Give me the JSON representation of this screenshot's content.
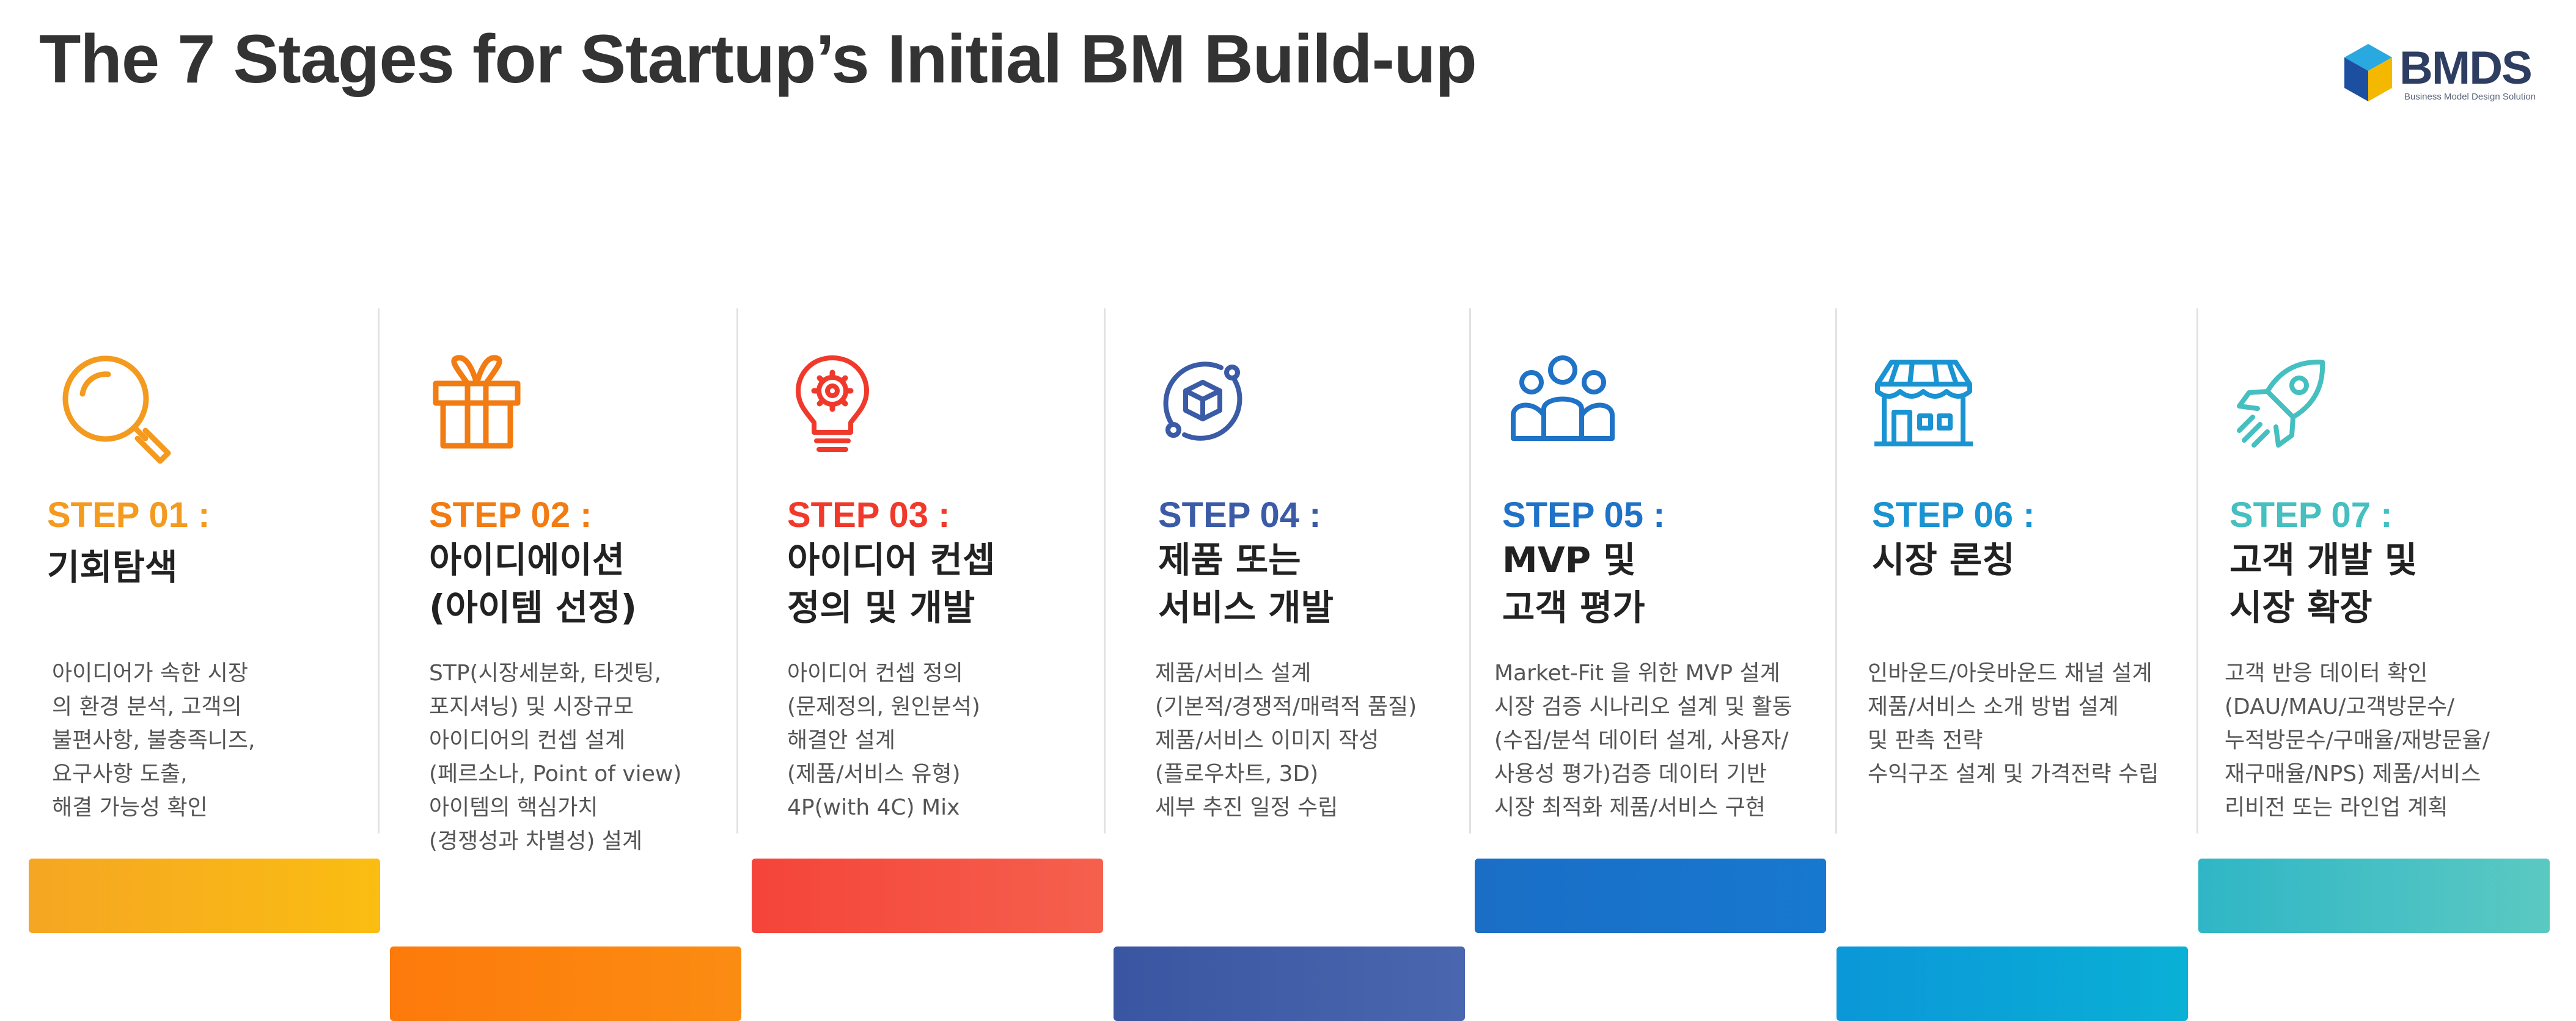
{
  "title": "The 7 Stages for Startup’s Initial BM Build-up",
  "logo": {
    "word": "BMDS",
    "sub": "Business Model Design Solution"
  },
  "colors": {
    "step01": "#f39a1f",
    "step02": "#f27b12",
    "step03": "#f0392b",
    "step04": "#3b5ba7",
    "step05": "#1f72c6",
    "step06": "#1993d1",
    "step07": "#45bfc0"
  },
  "steps": [
    {
      "label": "STEP 01 :",
      "icon": "magnifier-icon",
      "title": [
        "기회탐색"
      ],
      "desc": [
        "아이디어가 속한 시장",
        "의 환경 분석, 고객의",
        "불편사항, 불충족니즈,",
        "요구사항 도출,",
        "해결 가능성 확인"
      ]
    },
    {
      "label": "STEP 02 :",
      "icon": "gift-icon",
      "title": [
        "아이디에이션",
        "(아이템 선정)"
      ],
      "desc": [
        "STP(시장세분화, 타겟팅,",
        "포지셔닝) 및 시장규모",
        "아이디어의 컨셉 설계",
        "(페르소나, Point of view)",
        "아이템의 핵심가치",
        "(경쟁성과 차별성) 설계"
      ]
    },
    {
      "label": "STEP 03 :",
      "icon": "lightbulb-gear-icon",
      "title": [
        "아이디어 컨셉",
        "정의 및 개발"
      ],
      "desc": [
        "아이디어 컨셉 정의",
        "(문제정의, 원인분석)",
        "해결안 설계",
        "(제품/서비스 유형)",
        "4P(with 4C) Mix"
      ]
    },
    {
      "label": "STEP 04 :",
      "icon": "cube-cycle-icon",
      "title": [
        "제품 또는",
        "서비스 개발"
      ],
      "desc": [
        "제품/서비스 설계",
        "(기본적/경쟁적/매력적 품질)",
        "제품/서비스 이미지 작성",
        "(플로우차트, 3D)",
        "세부 추진 일정 수립"
      ]
    },
    {
      "label": "STEP 05 :",
      "icon": "people-icon",
      "title": [
        "MVP 및",
        "고객 평가"
      ],
      "desc": [
        "Market-Fit 을 위한 MVP 설계",
        "시장 검증 시나리오 설계 및 활동",
        "(수집/분석 데이터 설계, 사용자/",
        "사용성 평가)검증 데이터 기반",
        "시장 최적화  제품/서비스 구현"
      ]
    },
    {
      "label": "STEP 06 :",
      "icon": "storefront-icon",
      "title": [
        "시장 론칭"
      ],
      "desc": [
        "인바운드/아웃바운드 채널 설계",
        "제품/서비스 소개 방법 설계",
        "및 판촉 전략",
        "수익구조 설계 및 가격전략 수립"
      ]
    },
    {
      "label": "STEP 07 :",
      "icon": "rocket-icon",
      "title": [
        "고객 개발 및",
        "시장 확장"
      ],
      "desc": [
        "고객 반응 데이터 확인",
        "(DAU/MAU/고객방문수/",
        "누적방문수/구매율/재방문율/",
        "재구매율/NPS) 제품/서비스",
        "리비전 또는 라인업 계획"
      ]
    }
  ]
}
